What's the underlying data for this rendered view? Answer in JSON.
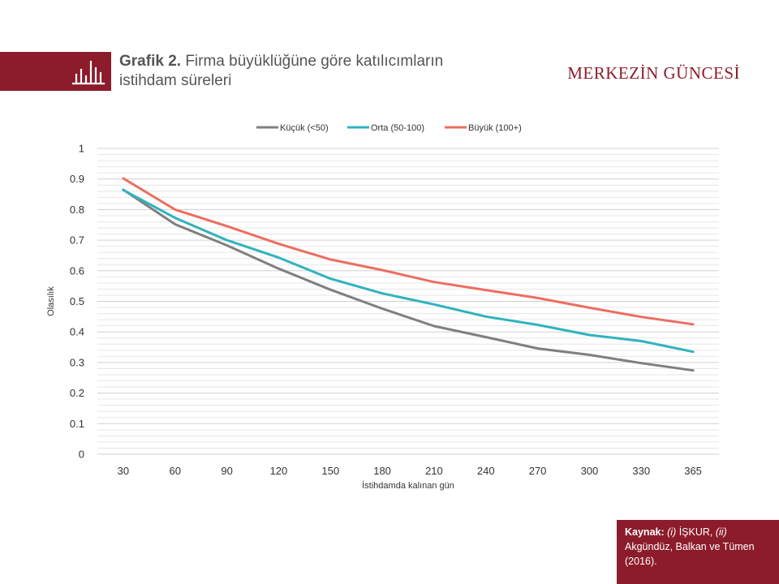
{
  "header": {
    "title_bold": "Grafik 2.",
    "title_rest": "Firma büyüklüğüne göre katılıcımların istihdam süreleri",
    "brand": "MERKEZİN GÜNCESİ",
    "icon": "bar-chart-icon"
  },
  "source": {
    "label": "Kaynak:",
    "text1_i": "(i)",
    "text1": " İŞKUR, ",
    "text2_i": "(ii)",
    "text2": " Akgündüz, Balkan ve Tümen (2016)."
  },
  "colors": {
    "brand": "#8c1c2b",
    "small": "#7f7f7f",
    "medium": "#2fb3be",
    "large": "#ec6e60"
  },
  "chart_data": {
    "type": "line",
    "xlabel": "İstihdamda kalınan gün",
    "ylabel": "Olasılık",
    "ylim": [
      0,
      1
    ],
    "yticks": [
      0,
      0.1,
      0.2,
      0.3,
      0.4,
      0.5,
      0.6,
      0.7,
      0.8,
      0.9,
      1
    ],
    "ytick_labels": [
      "0",
      "0.1",
      "0.2",
      "0.3",
      "0.4",
      "0.5",
      "0.6",
      "0.7",
      "0.8",
      "0.9",
      "1"
    ],
    "categories": [
      "30",
      "60",
      "90",
      "120",
      "150",
      "180",
      "210",
      "240",
      "270",
      "300",
      "330",
      "365"
    ],
    "legend_position": "top",
    "grid": true,
    "series": [
      {
        "name": "Küçük (<50)",
        "color": "#7f7f7f",
        "values": [
          0.865,
          0.752,
          0.683,
          0.607,
          0.538,
          0.476,
          0.419,
          0.383,
          0.346,
          0.325,
          0.298,
          0.274
        ]
      },
      {
        "name": "Orta (50-100)",
        "color": "#2fb3be",
        "values": [
          0.864,
          0.773,
          0.7,
          0.643,
          0.574,
          0.526,
          0.49,
          0.45,
          0.423,
          0.39,
          0.37,
          0.335
        ]
      },
      {
        "name": "Büyük (100+)",
        "color": "#ec6e60",
        "values": [
          0.902,
          0.8,
          0.746,
          0.688,
          0.637,
          0.602,
          0.563,
          0.537,
          0.511,
          0.479,
          0.449,
          0.425
        ]
      }
    ]
  }
}
